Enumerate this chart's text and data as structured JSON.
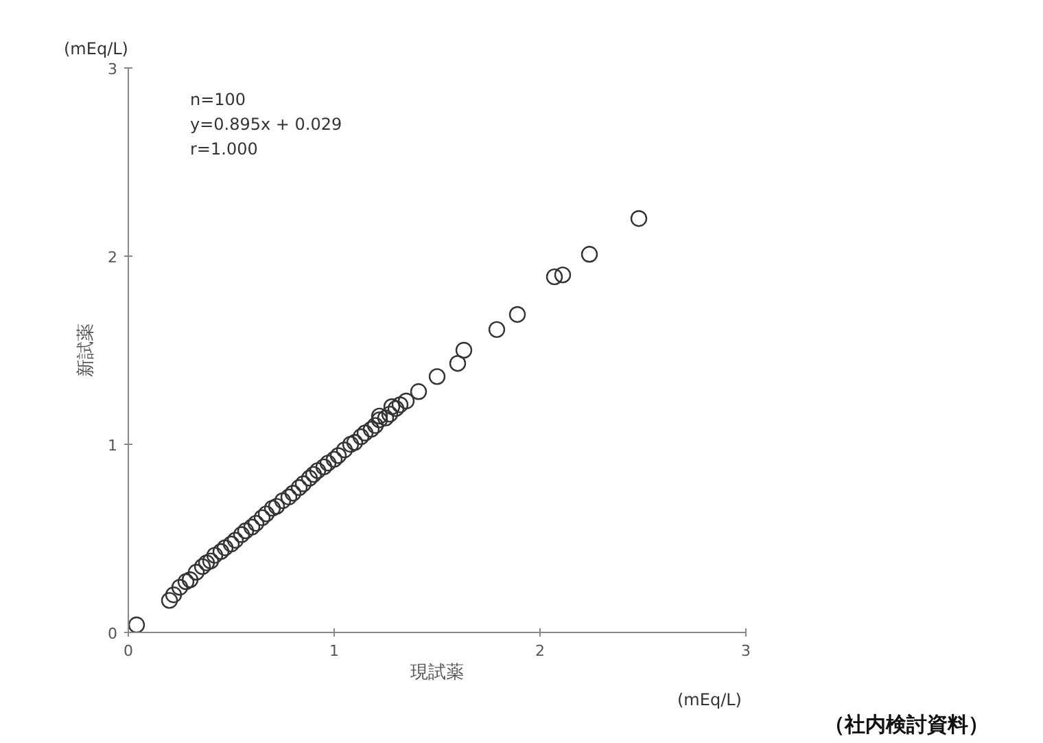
{
  "chart_data": {
    "type": "scatter",
    "xlabel": "現試薬",
    "ylabel": "新試薬",
    "annotations": [
      "n=100",
      "y=0.895x + 0.029",
      "r=1.000",
      "(mEq/L)",
      "(mEq/L)",
      "（社内検討資料）"
    ],
    "x": [
      0.04,
      0.2,
      0.22,
      0.25,
      0.28,
      0.3,
      0.33,
      0.36,
      0.38,
      0.4,
      0.42,
      0.45,
      0.47,
      0.5,
      0.52,
      0.55,
      0.57,
      0.6,
      0.62,
      0.65,
      0.67,
      0.7,
      0.72,
      0.75,
      0.78,
      0.8,
      0.83,
      0.85,
      0.88,
      0.9,
      0.92,
      0.95,
      0.97,
      1.0,
      1.02,
      1.05,
      1.08,
      1.1,
      1.13,
      1.15,
      1.18,
      1.2,
      1.22,
      1.25,
      1.27,
      1.3,
      1.32,
      1.35,
      1.22,
      1.28,
      1.41,
      1.5,
      1.6,
      1.63,
      1.79,
      1.89,
      2.07,
      2.11,
      2.24,
      2.48
    ],
    "values": [
      0.04,
      0.17,
      0.2,
      0.24,
      0.27,
      0.28,
      0.32,
      0.35,
      0.37,
      0.38,
      0.41,
      0.43,
      0.45,
      0.47,
      0.49,
      0.52,
      0.54,
      0.56,
      0.58,
      0.61,
      0.63,
      0.66,
      0.67,
      0.7,
      0.72,
      0.74,
      0.77,
      0.79,
      0.82,
      0.84,
      0.86,
      0.88,
      0.9,
      0.92,
      0.94,
      0.97,
      1.0,
      1.01,
      1.04,
      1.06,
      1.08,
      1.1,
      1.13,
      1.14,
      1.16,
      1.19,
      1.21,
      1.23,
      1.15,
      1.2,
      1.28,
      1.36,
      1.43,
      1.5,
      1.61,
      1.69,
      1.89,
      1.9,
      2.01,
      2.2
    ],
    "color": "#333333",
    "marker": "circle",
    "xlim": [
      0,
      3
    ],
    "ylim": [
      0,
      3
    ],
    "xticks": [
      0,
      1,
      2,
      3
    ],
    "yticks": [
      0,
      1,
      2,
      3
    ],
    "grid": false
  }
}
